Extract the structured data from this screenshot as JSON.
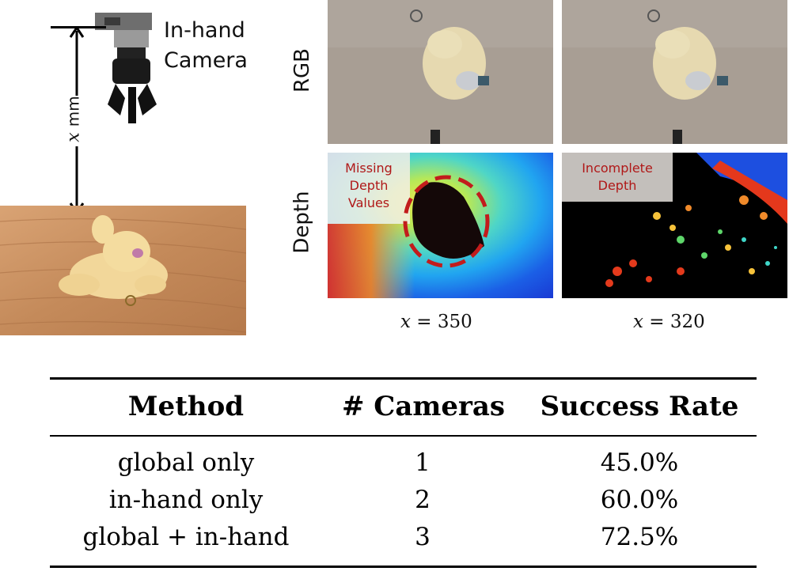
{
  "illustration": {
    "camera_label_line1": "In-hand",
    "camera_label_line2": "Camera",
    "distance_var": "x",
    "distance_unit": "mm"
  },
  "panels": {
    "row_rgb": "RGB",
    "row_depth": "Depth",
    "callout_missing_1": "Missing",
    "callout_missing_2": "Depth",
    "callout_missing_3": "Values",
    "callout_incomplete_1": "Incomplete",
    "callout_incomplete_2": "Depth",
    "col1_var": "x",
    "col1_rest": " = 350",
    "col2_var": "x",
    "col2_rest": " = 320",
    "callout_color": "#b01818"
  },
  "table": {
    "headers": [
      "Method",
      "# Cameras",
      "Success Rate"
    ],
    "rows": [
      [
        "global only",
        "1",
        "45.0%"
      ],
      [
        "in-hand only",
        "2",
        "60.0%"
      ],
      [
        "global + in-hand",
        "3",
        "72.5%"
      ]
    ]
  }
}
